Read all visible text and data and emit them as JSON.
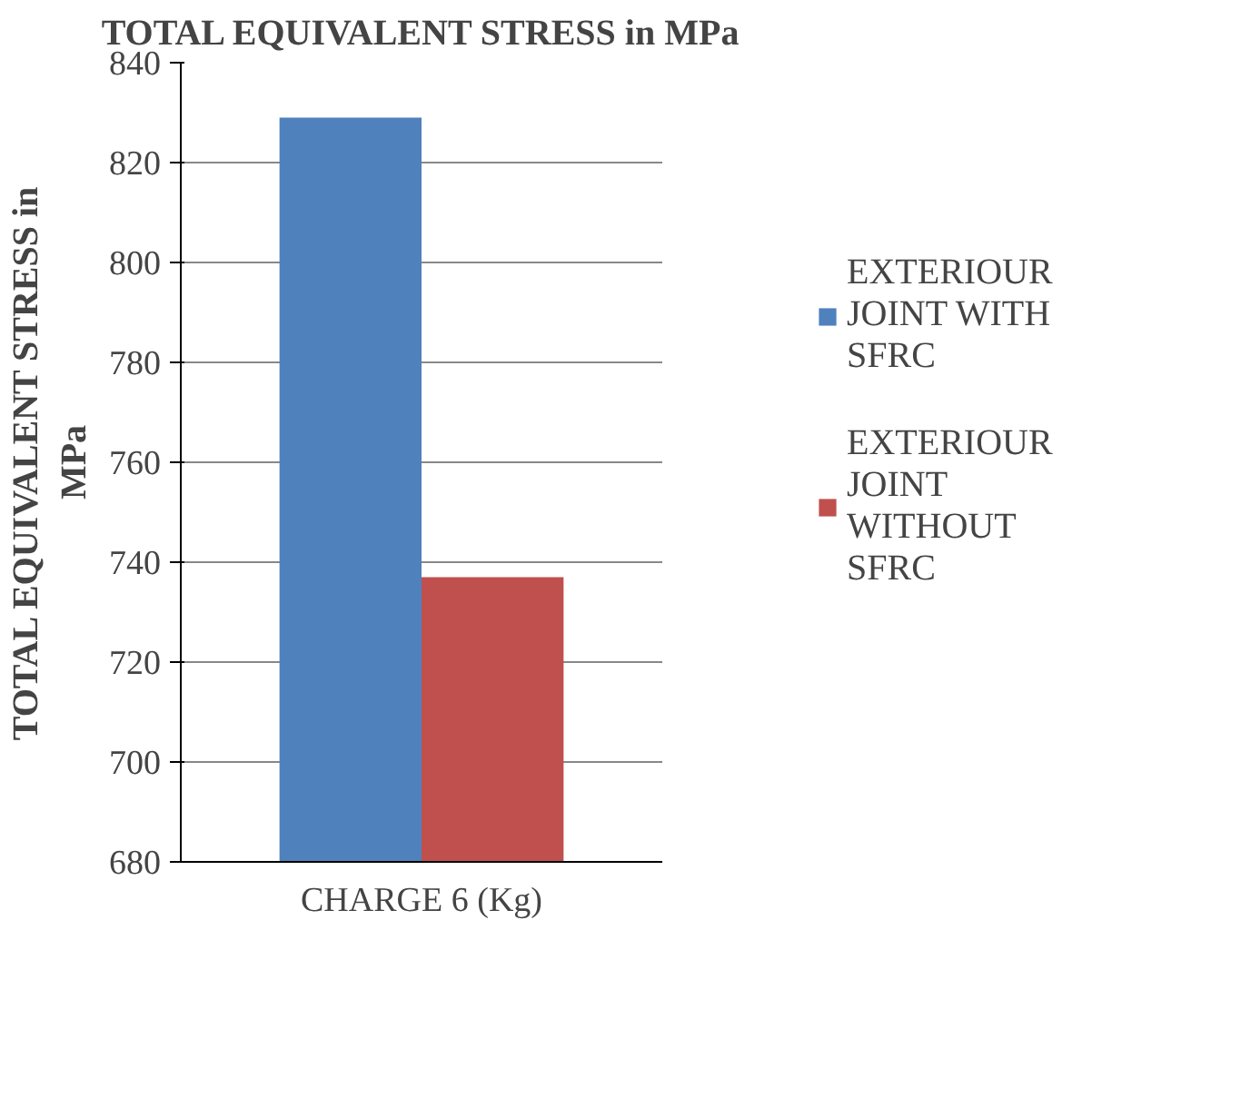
{
  "chart_data": {
    "type": "bar",
    "title": "TOTAL EQUIVALENT STRESS in MPa",
    "ylabel": "TOTAL EQUIVALENT STRESS in MPa",
    "categories": [
      "CHARGE 6 (Kg)"
    ],
    "series": [
      {
        "name": "EXTERIOUR JOINT WITH SFRC",
        "color": "#4f81bd",
        "values": [
          829
        ]
      },
      {
        "name": "EXTERIOUR JOINT WITHOUT SFRC",
        "color": "#c0504d",
        "values": [
          737
        ]
      }
    ],
    "ylim": [
      680,
      840
    ],
    "yticks": [
      680,
      700,
      720,
      740,
      760,
      780,
      800,
      820,
      840
    ],
    "grid": "y",
    "legend": "right"
  }
}
